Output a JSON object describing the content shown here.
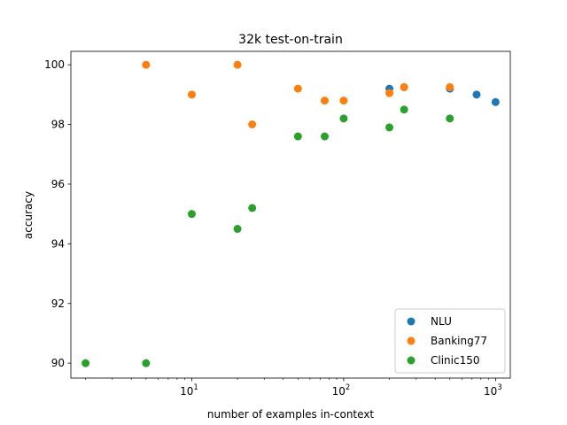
{
  "chart_data": {
    "type": "scatter",
    "title": "32k test-on-train",
    "xlabel": "number of examples in-context",
    "ylabel": "accuracy",
    "x_scale": "log",
    "xlim": [
      1.6,
      1250
    ],
    "ylim": [
      89.5,
      100.45
    ],
    "x_ticks": [
      {
        "value": 10,
        "base": "10",
        "exp": "1"
      },
      {
        "value": 100,
        "base": "10",
        "exp": "2"
      },
      {
        "value": 1000,
        "base": "10",
        "exp": "3"
      }
    ],
    "y_ticks": [
      90,
      92,
      94,
      96,
      98,
      100
    ],
    "legend_position": "lower-right",
    "grid": false,
    "series": [
      {
        "name": "NLU",
        "color": "#1f77b4",
        "points": [
          [
            200,
            99.2
          ],
          [
            250,
            99.25
          ],
          [
            500,
            99.2
          ],
          [
            750,
            99.0
          ],
          [
            1000,
            98.75
          ]
        ]
      },
      {
        "name": "Banking77",
        "color": "#ff7f0e",
        "points": [
          [
            5,
            100
          ],
          [
            10,
            99.0
          ],
          [
            20,
            100
          ],
          [
            25,
            98.0
          ],
          [
            50,
            99.2
          ],
          [
            75,
            98.8
          ],
          [
            100,
            98.8
          ],
          [
            200,
            99.05
          ],
          [
            250,
            99.25
          ],
          [
            500,
            99.25
          ]
        ]
      },
      {
        "name": "Clinic150",
        "color": "#2ca02c",
        "points": [
          [
            2,
            90.0
          ],
          [
            5,
            90.0
          ],
          [
            10,
            95.0
          ],
          [
            20,
            94.5
          ],
          [
            25,
            95.2
          ],
          [
            50,
            97.6
          ],
          [
            75,
            97.6
          ],
          [
            100,
            98.2
          ],
          [
            200,
            97.9
          ],
          [
            250,
            98.5
          ],
          [
            500,
            98.2
          ]
        ]
      }
    ]
  }
}
